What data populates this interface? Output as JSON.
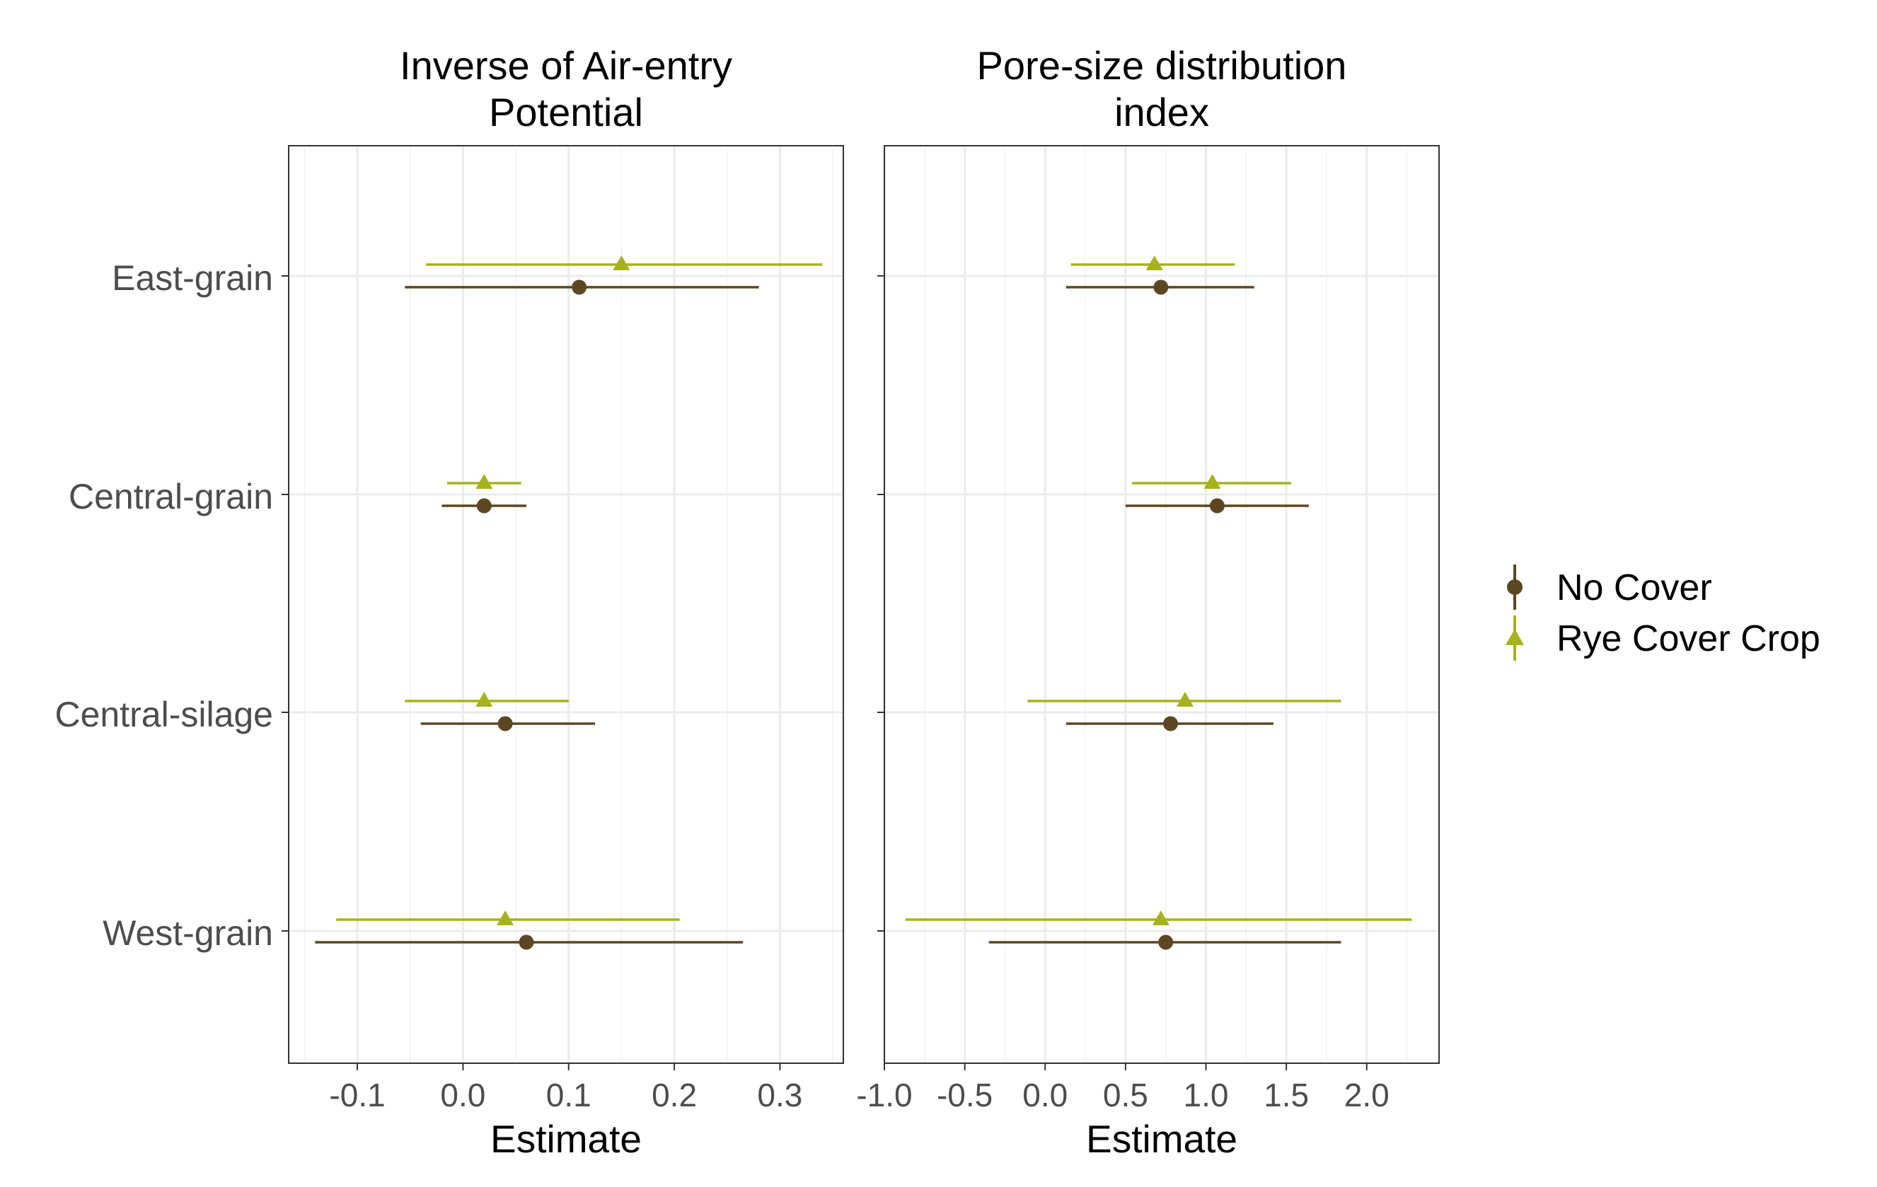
{
  "chart_data": {
    "type": "scatter",
    "subtype": "dot-and-whisker faceted",
    "categories": [
      "East-grain",
      "Central-grain",
      "Central-silage",
      "West-grain"
    ],
    "legend": {
      "placement": "right",
      "entries": [
        {
          "name": "No Cover",
          "color": "#5c4722",
          "shape": "circle"
        },
        {
          "name": "Rye Cover Crop",
          "color": "#a6b21c",
          "shape": "triangle"
        }
      ]
    },
    "grid": true,
    "panels": [
      {
        "title_lines": [
          "Inverse of Air-entry",
          "Potential"
        ],
        "xlabel": "Estimate",
        "xlim": [
          -0.165,
          0.36
        ],
        "xticks": [
          -0.1,
          0.0,
          0.1,
          0.2,
          0.3
        ],
        "xtick_labels": [
          "-0.1",
          "0.0",
          "0.1",
          "0.2",
          "0.3"
        ],
        "series": [
          {
            "name": "No Cover",
            "estimate": [
              0.11,
              0.02,
              0.04,
              0.06
            ],
            "lower": [
              -0.055,
              -0.02,
              -0.04,
              -0.14
            ],
            "upper": [
              0.28,
              0.06,
              0.125,
              0.265
            ]
          },
          {
            "name": "Rye Cover Crop",
            "estimate": [
              0.15,
              0.02,
              0.02,
              0.04
            ],
            "lower": [
              -0.035,
              -0.015,
              -0.055,
              -0.12
            ],
            "upper": [
              0.34,
              0.055,
              0.1,
              0.205
            ]
          }
        ]
      },
      {
        "title_lines": [
          "Pore-size distribution",
          "index"
        ],
        "xlabel": "Estimate",
        "xlim": [
          -1.0,
          2.45
        ],
        "xticks": [
          -1.0,
          -0.5,
          0.0,
          0.5,
          1.0,
          1.5,
          2.0
        ],
        "xtick_labels": [
          "-1.0",
          "-0.5",
          "0.0",
          "0.5",
          "1.0",
          "1.5",
          "2.0"
        ],
        "series": [
          {
            "name": "No Cover",
            "estimate": [
              0.72,
              1.07,
              0.78,
              0.75
            ],
            "lower": [
              0.13,
              0.5,
              0.13,
              -0.35
            ],
            "upper": [
              1.3,
              1.64,
              1.42,
              1.84
            ]
          },
          {
            "name": "Rye Cover Crop",
            "estimate": [
              0.68,
              1.04,
              0.87,
              0.72
            ],
            "lower": [
              0.16,
              0.54,
              -0.11,
              -0.87
            ],
            "upper": [
              1.18,
              1.53,
              1.84,
              2.28
            ]
          }
        ]
      }
    ]
  }
}
